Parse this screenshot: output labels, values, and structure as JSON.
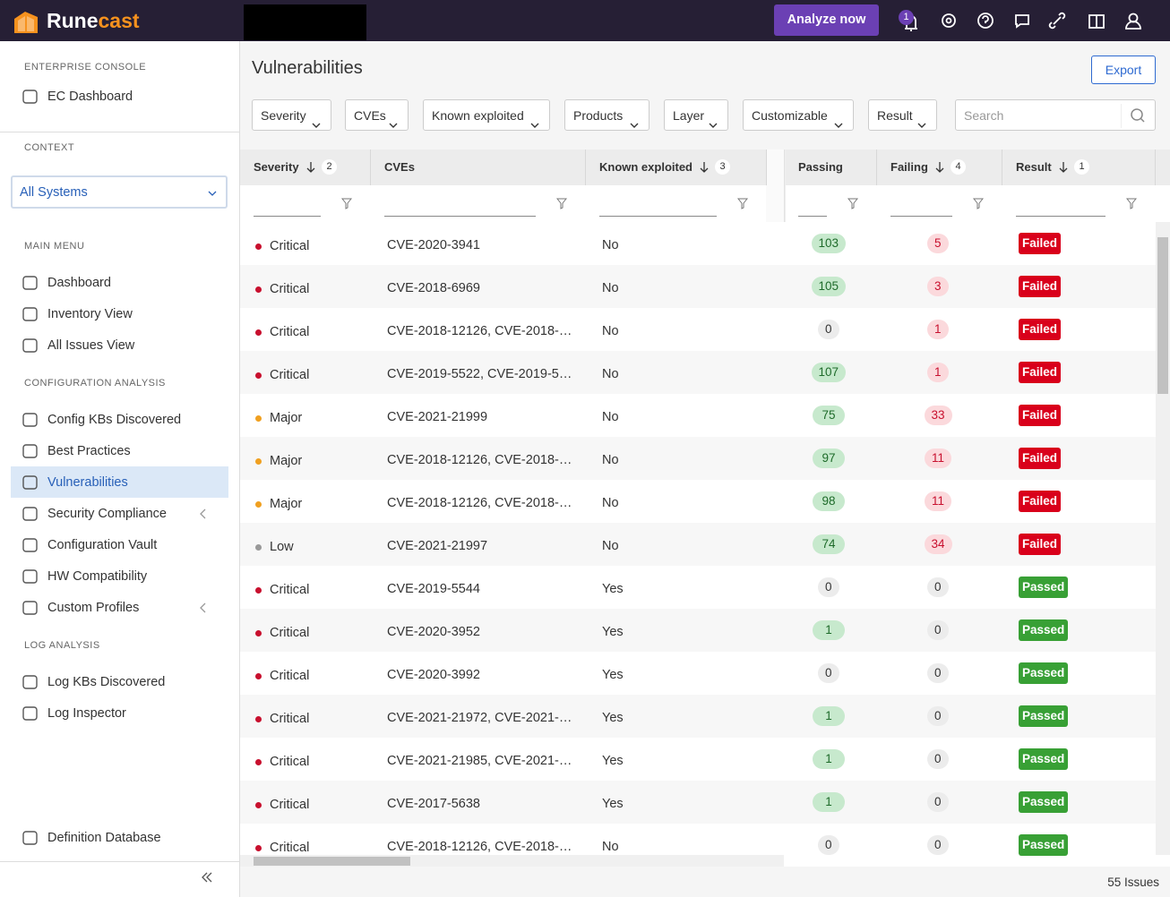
{
  "header": {
    "brand_parts": [
      "Rune",
      "cast"
    ],
    "action": "Analyze now",
    "notifications": 1
  },
  "sidebar": {
    "enterprise_heading": "ENTERPRISE CONSOLE",
    "ec_dashboard": "EC Dashboard",
    "context_heading": "CONTEXT",
    "context_value": "All Systems",
    "main_heading": "MAIN MENU",
    "main_items": [
      "Dashboard",
      "Inventory View",
      "All Issues View"
    ],
    "config_heading": "CONFIGURATION ANALYSIS",
    "config_items": [
      "Config KBs Discovered",
      "Best Practices",
      "Vulnerabilities",
      "Security Compliance",
      "Configuration Vault",
      "HW Compatibility",
      "Custom Profiles"
    ],
    "log_heading": "LOG ANALYSIS",
    "log_items": [
      "Log KBs Discovered",
      "Log Inspector"
    ],
    "bottom_item": "Definition Database"
  },
  "page": {
    "title": "Vulnerabilities",
    "export": "Export",
    "filters": [
      "Severity",
      "CVEs",
      "Known exploited",
      "Products",
      "Layer",
      "Customizable",
      "Result"
    ],
    "search_placeholder": "Search"
  },
  "table": {
    "columns": [
      {
        "name": "Severity",
        "sort_rank": 2
      },
      {
        "name": "CVEs"
      },
      {
        "name": "Known exploited",
        "sort_rank": 3
      },
      {
        "name": "Passing"
      },
      {
        "name": "Failing",
        "sort_rank": 4
      },
      {
        "name": "Result",
        "sort_rank": 1
      }
    ],
    "rows": [
      [
        "Critical",
        "CVE-2020-3941",
        "No",
        103,
        5,
        "Failed"
      ],
      [
        "Critical",
        "CVE-2018-6969",
        "No",
        105,
        3,
        "Failed"
      ],
      [
        "Critical",
        "CVE-2018-12126, CVE-2018-…",
        "No",
        0,
        1,
        "Failed"
      ],
      [
        "Critical",
        "CVE-2019-5522, CVE-2019-5…",
        "No",
        107,
        1,
        "Failed"
      ],
      [
        "Major",
        "CVE-2021-21999",
        "No",
        75,
        33,
        "Failed"
      ],
      [
        "Major",
        "CVE-2018-12126, CVE-2018-…",
        "No",
        97,
        11,
        "Failed"
      ],
      [
        "Major",
        "CVE-2018-12126, CVE-2018-…",
        "No",
        98,
        11,
        "Failed"
      ],
      [
        "Low",
        "CVE-2021-21997",
        "No",
        74,
        34,
        "Failed"
      ],
      [
        "Critical",
        "CVE-2019-5544",
        "Yes",
        0,
        0,
        "Passed"
      ],
      [
        "Critical",
        "CVE-2020-3952",
        "Yes",
        1,
        0,
        "Passed"
      ],
      [
        "Critical",
        "CVE-2020-3992",
        "Yes",
        0,
        0,
        "Passed"
      ],
      [
        "Critical",
        "CVE-2021-21972, CVE-2021-…",
        "Yes",
        1,
        0,
        "Passed"
      ],
      [
        "Critical",
        "CVE-2021-21985, CVE-2021-…",
        "Yes",
        1,
        0,
        "Passed"
      ],
      [
        "Critical",
        "CVE-2017-5638",
        "Yes",
        1,
        0,
        "Passed"
      ],
      [
        "Critical",
        "CVE-2018-12126, CVE-2018-…",
        "No",
        0,
        0,
        "Passed"
      ]
    ]
  },
  "footer": {
    "count": "55 Issues"
  }
}
